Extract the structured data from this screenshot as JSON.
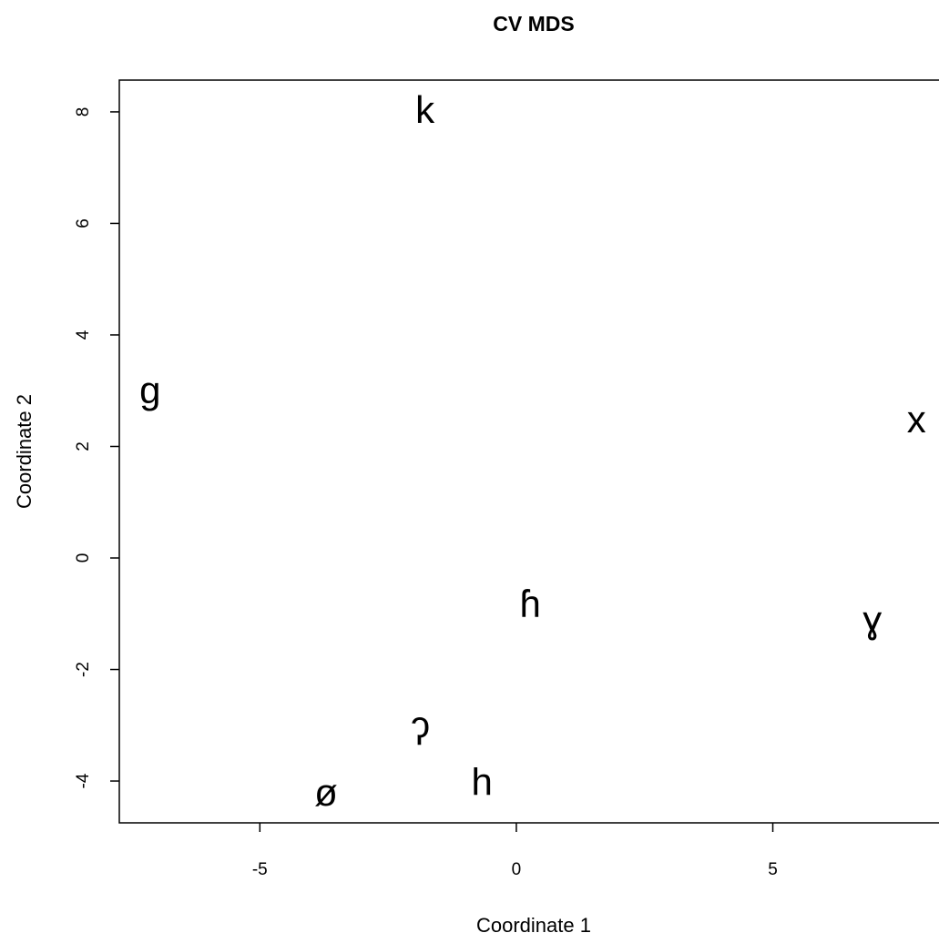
{
  "chart_data": {
    "type": "text-scatter",
    "title": "CV MDS",
    "x_label": "Coordinate 1",
    "y_label": "Coordinate 2",
    "labels": [
      "k",
      "g",
      "x",
      "ɦ",
      "ɣ",
      "ʔ",
      "h",
      "ø"
    ],
    "x": [
      -1.78,
      -7.14,
      7.8,
      0.27,
      6.94,
      -1.87,
      -0.67,
      -3.71
    ],
    "y": [
      7.98,
      2.96,
      2.43,
      -0.87,
      -1.16,
      -3.17,
      -4.07,
      -4.26
    ],
    "color": "#000000",
    "xlim": [
      -7.74,
      8.24
    ],
    "xticks": [
      -5,
      0,
      5
    ],
    "ylim": [
      -4.75,
      8.57
    ],
    "yticks": [
      -4,
      -2,
      0,
      2,
      4,
      6,
      8
    ]
  }
}
